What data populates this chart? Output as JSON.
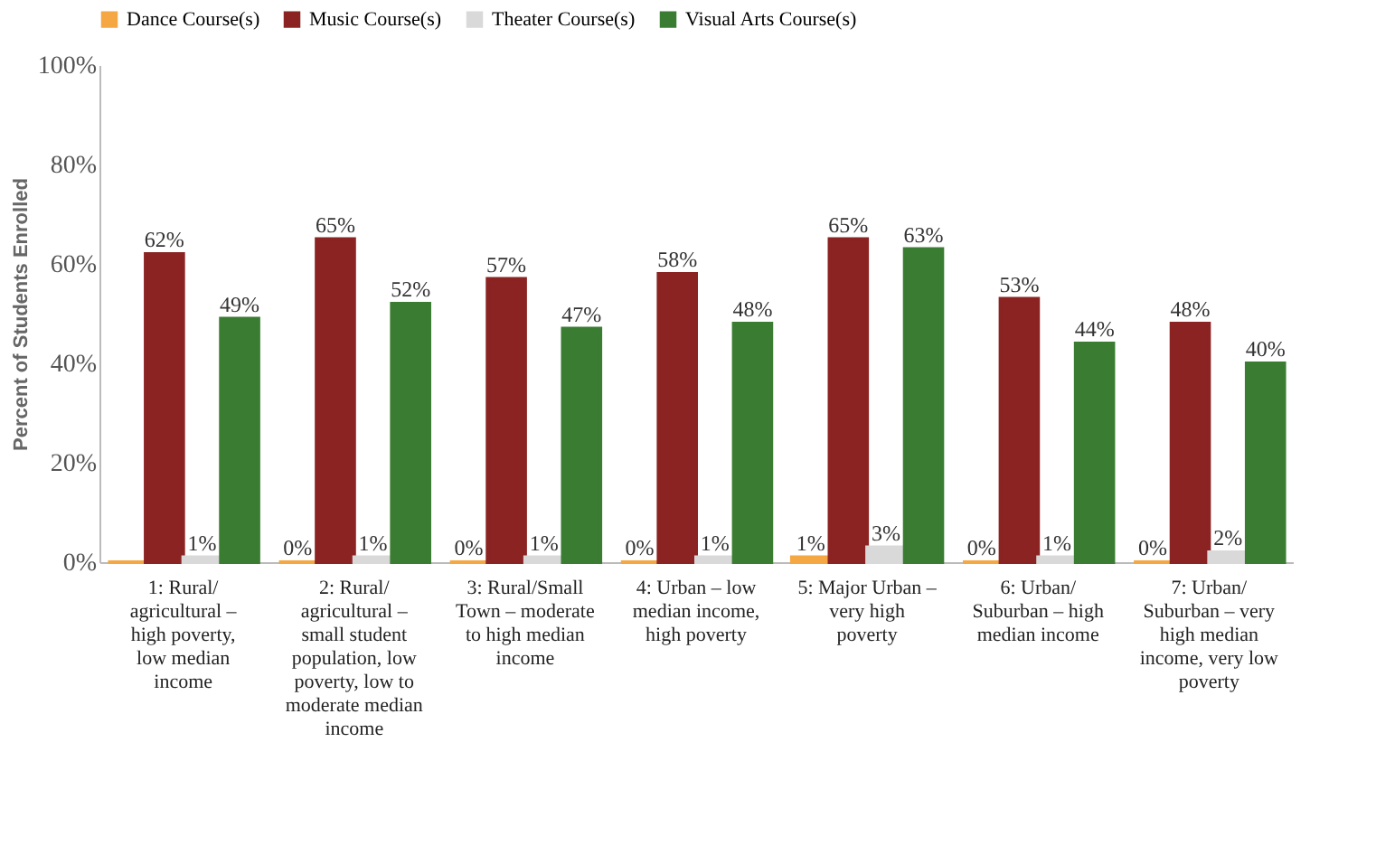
{
  "chart_data": {
    "type": "bar",
    "ylabel": "Percent of Students Enrolled",
    "categories": [
      "1: Rural/ agricultural – high poverty, low median income",
      "2: Rural/ agricultural – small student population, low poverty, low to moderate median income",
      "3: Rural/Small Town – moderate to high median income",
      "4: Urban – low median income, high poverty",
      "5: Major Urban – very high poverty",
      "6: Urban/ Suburban – high median income",
      "7: Urban/ Suburban – very high median income, very low poverty"
    ],
    "series": [
      {
        "name": "Dance Course(s)",
        "color": "#f4a742",
        "values": [
          0,
          0,
          0,
          0,
          1,
          0,
          0
        ],
        "value_labels": [
          null,
          "0%",
          "0%",
          "0%",
          "1%",
          "0%",
          "0%"
        ]
      },
      {
        "name": "Music Course(s)",
        "color": "#8b2323",
        "values": [
          62,
          65,
          57,
          58,
          65,
          53,
          48
        ],
        "value_labels": [
          "62%",
          "65%",
          "57%",
          "58%",
          "65%",
          "53%",
          "48%"
        ]
      },
      {
        "name": "Theater Course(s)",
        "color": "#d9d9d9",
        "values": [
          1,
          1,
          1,
          1,
          3,
          1,
          2
        ],
        "value_labels": [
          "1%",
          "1%",
          "1%",
          "1%",
          "3%",
          "1%",
          "2%"
        ]
      },
      {
        "name": "Visual Arts Course(s)",
        "color": "#3a7d32",
        "values": [
          49,
          52,
          47,
          48,
          63,
          44,
          40
        ],
        "value_labels": [
          "49%",
          "52%",
          "47%",
          "48%",
          "63%",
          "44%",
          "40%"
        ]
      }
    ],
    "ylim": [
      0,
      100
    ],
    "yticks": [
      {
        "value": 0,
        "label": "0%"
      },
      {
        "value": 20,
        "label": "20%"
      },
      {
        "value": 40,
        "label": "40%"
      },
      {
        "value": 60,
        "label": "60%"
      },
      {
        "value": 80,
        "label": "80%"
      },
      {
        "value": 100,
        "label": "100%"
      }
    ],
    "grid": false,
    "legend": "top"
  }
}
